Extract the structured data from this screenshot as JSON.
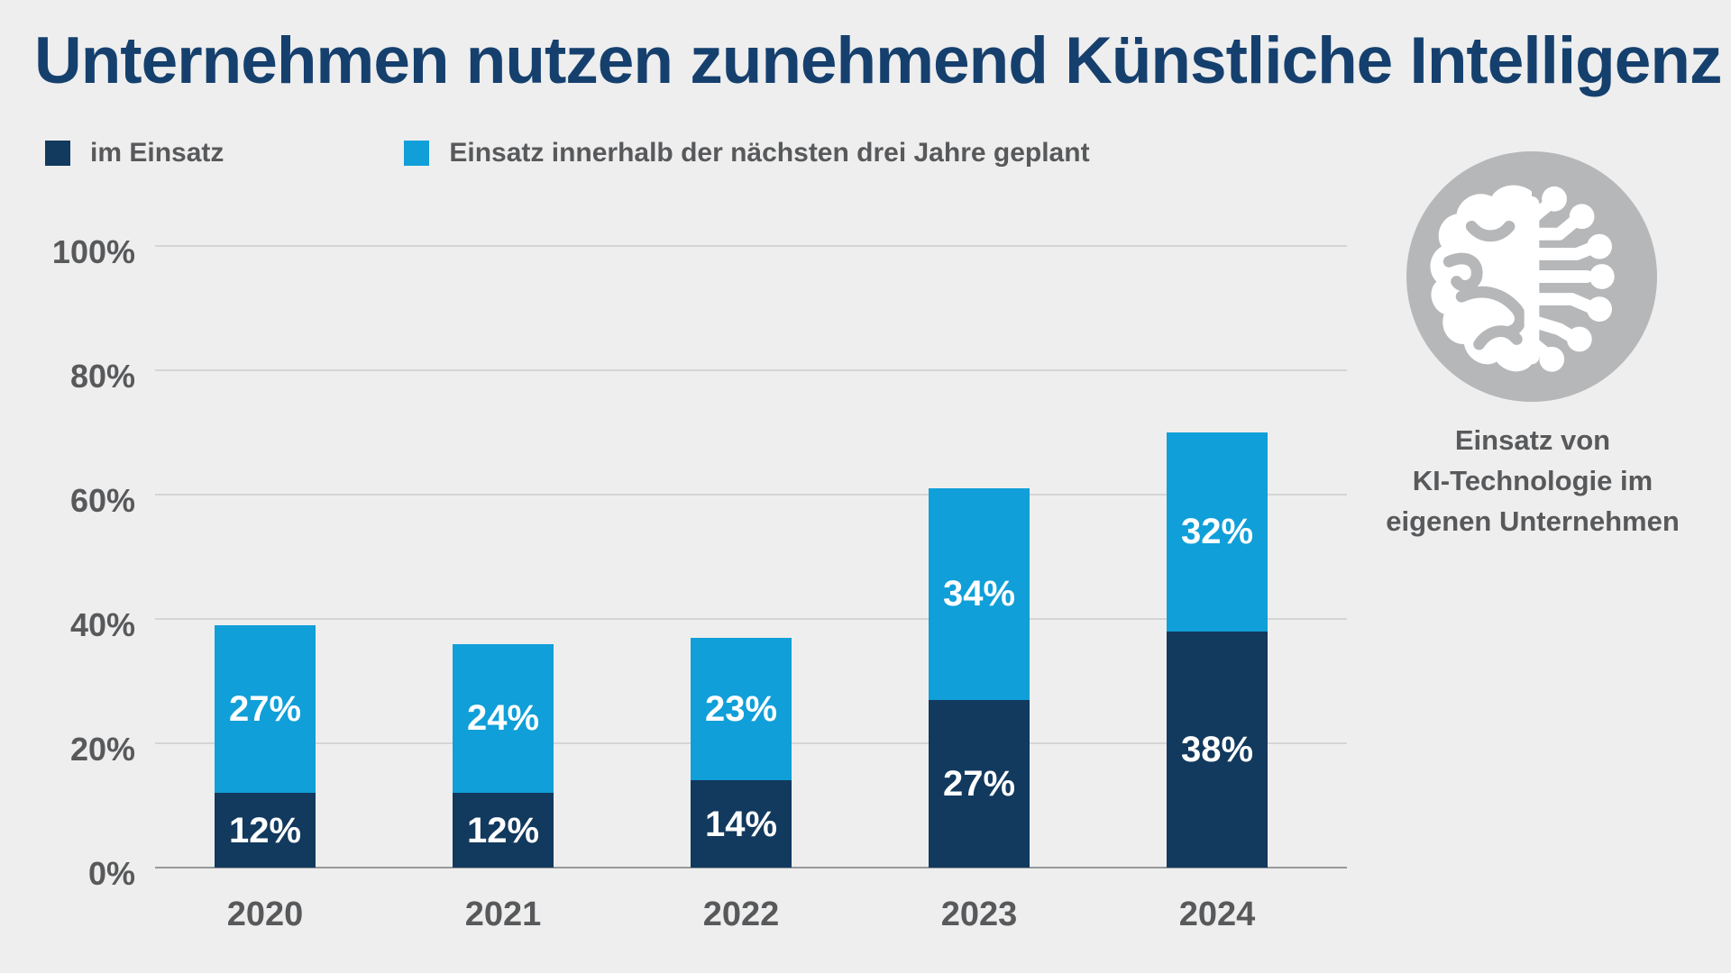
{
  "title": "Unternehmen nutzen zunehmend Künstliche Intelligenz",
  "legend": [
    {
      "label": "im Einsatz",
      "color": "#12395e"
    },
    {
      "label": "Einsatz innerhalb der nächsten drei Jahre geplant",
      "color": "#109fd8"
    }
  ],
  "side_panel": {
    "icon": "brain-circuit-icon",
    "icon_circle_color": "#b5b7b9",
    "caption_lines": [
      "Einsatz von",
      "KI-Technologie im",
      "eigenen Unternehmen"
    ]
  },
  "chart_data": {
    "type": "bar",
    "stacked": true,
    "title": "Unternehmen nutzen zunehmend Künstliche Intelligenz",
    "categories": [
      "2020",
      "2021",
      "2022",
      "2023",
      "2024"
    ],
    "series": [
      {
        "name": "im Einsatz",
        "color": "#12395e",
        "values": [
          12,
          12,
          14,
          27,
          38
        ]
      },
      {
        "name": "Einsatz innerhalb der nächsten drei Jahre geplant",
        "color": "#109fd8",
        "values": [
          27,
          24,
          23,
          34,
          32
        ]
      }
    ],
    "totals": [
      39,
      36,
      37,
      61,
      70
    ],
    "value_suffix": "%",
    "ylim": [
      0,
      100
    ],
    "yticks": [
      0,
      20,
      40,
      60,
      80,
      100
    ],
    "ytick_suffix": "%",
    "grid": true,
    "legend_position": "top-left",
    "xlabel": "",
    "ylabel": ""
  },
  "colors": {
    "background": "#eeeeee",
    "title": "#15406e",
    "axis_text": "#58595b",
    "gridline": "#d5d5d6",
    "axis_line": "#97999b",
    "bar_label": "#ffffff"
  }
}
